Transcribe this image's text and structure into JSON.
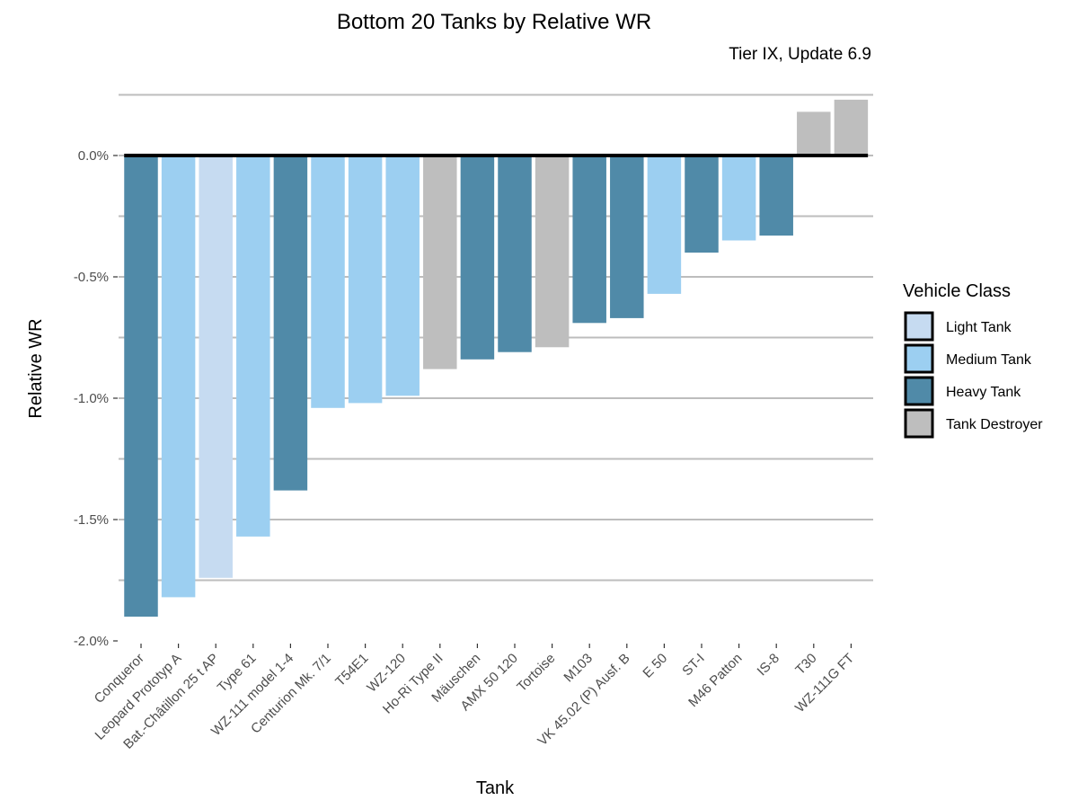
{
  "chart_data": {
    "type": "bar",
    "title": "Bottom 20 Tanks by Relative WR",
    "subtitle": "Tier IX, Update 6.9",
    "xlabel": "Tank",
    "ylabel": "Relative WR",
    "ylim": [
      -2.0,
      0.25
    ],
    "yticks": [
      {
        "value": 0.0,
        "label": "0.0%"
      },
      {
        "value": -0.5,
        "label": "-0.5%"
      },
      {
        "value": -1.0,
        "label": "-1.0%"
      },
      {
        "value": -1.5,
        "label": "-1.5%"
      },
      {
        "value": -2.0,
        "label": "-2.0%"
      }
    ],
    "grid": true,
    "legend": {
      "title": "Vehicle Class",
      "placement": "right",
      "entries": [
        {
          "key": "light",
          "label": "Light Tank",
          "color": "#c6dbf1"
        },
        {
          "key": "medium",
          "label": "Medium Tank",
          "color": "#9ccff1"
        },
        {
          "key": "heavy",
          "label": "Heavy Tank",
          "color": "#508aa8"
        },
        {
          "key": "td",
          "label": "Tank Destroyer",
          "color": "#bebebe"
        }
      ]
    },
    "categories": [
      "Conqueror",
      "Leopard Prototyp A",
      "Bat.-Châtillon 25 t AP",
      "Type 61",
      "WZ-111 model 1-4",
      "Centurion Mk. 7/1",
      "T54E1",
      "WZ-120",
      "Ho-Ri Type II",
      "Mäuschen",
      "AMX 50 120",
      "Tortoise",
      "M103",
      "VK 45.02 (P) Ausf. B",
      "E 50",
      "ST-I",
      "M46 Patton",
      "IS-8",
      "T30",
      "WZ-111G FT"
    ],
    "values": [
      -1.9,
      -1.82,
      -1.74,
      -1.57,
      -1.38,
      -1.04,
      -1.02,
      -0.99,
      -0.88,
      -0.84,
      -0.81,
      -0.79,
      -0.69,
      -0.67,
      -0.57,
      -0.4,
      -0.35,
      -0.33,
      0.18,
      0.23
    ],
    "classes": [
      "heavy",
      "medium",
      "light",
      "medium",
      "heavy",
      "medium",
      "medium",
      "medium",
      "td",
      "heavy",
      "heavy",
      "td",
      "heavy",
      "heavy",
      "medium",
      "heavy",
      "medium",
      "heavy",
      "td",
      "td"
    ]
  }
}
